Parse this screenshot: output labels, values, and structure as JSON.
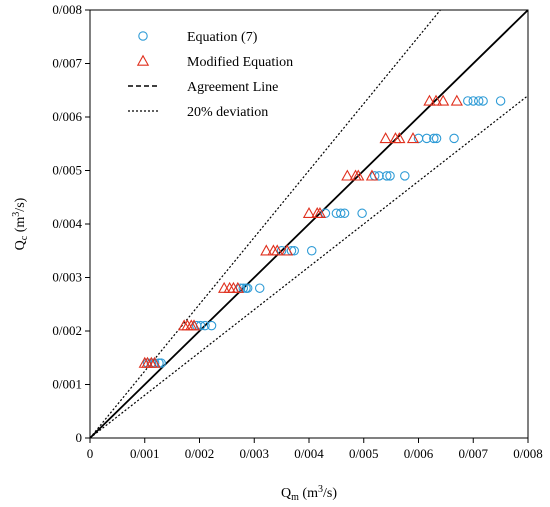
{
  "chart_data": {
    "type": "scatter",
    "xlim": [
      0,
      0.008
    ],
    "ylim": [
      0,
      0.008
    ],
    "xticks": [
      "0",
      "0/001",
      "0/002",
      "0/003",
      "0/004",
      "0/005",
      "0/006",
      "0/007",
      "0/008"
    ],
    "yticks": [
      "0",
      "0/001",
      "0/002",
      "0/003",
      "0/004",
      "0/005",
      "0/006",
      "0/007",
      "0/008"
    ],
    "xlabel_main": "Q",
    "xlabel_sub": "m",
    "xlabel_unit_pre": " (m",
    "xlabel_unit_sup": "3",
    "xlabel_unit_post": "/s)",
    "ylabel_main": "Q",
    "ylabel_sub": "c",
    "ylabel_unit_pre": " (m",
    "ylabel_unit_sup": "3",
    "ylabel_unit_post": "/s)",
    "grid": false,
    "legend_position": "top-left",
    "series": [
      {
        "name": "Equation (7)",
        "marker": "circle",
        "color": "#2E9BD6",
        "points": [
          [
            0.00105,
            0.0014
          ],
          [
            0.00112,
            0.0014
          ],
          [
            0.00118,
            0.0014
          ],
          [
            0.00126,
            0.0014
          ],
          [
            0.0013,
            0.0014
          ],
          [
            0.00195,
            0.0021
          ],
          [
            0.00202,
            0.0021
          ],
          [
            0.0021,
            0.0021
          ],
          [
            0.00222,
            0.0021
          ],
          [
            0.00275,
            0.0028
          ],
          [
            0.0028,
            0.0028
          ],
          [
            0.00285,
            0.0028
          ],
          [
            0.00288,
            0.0028
          ],
          [
            0.0031,
            0.0028
          ],
          [
            0.0035,
            0.0035
          ],
          [
            0.00368,
            0.0035
          ],
          [
            0.00373,
            0.0035
          ],
          [
            0.00405,
            0.0035
          ],
          [
            0.0043,
            0.0042
          ],
          [
            0.0045,
            0.0042
          ],
          [
            0.00458,
            0.0042
          ],
          [
            0.00465,
            0.0042
          ],
          [
            0.00497,
            0.0042
          ],
          [
            0.0052,
            0.0049
          ],
          [
            0.00528,
            0.0049
          ],
          [
            0.00542,
            0.0049
          ],
          [
            0.00548,
            0.0049
          ],
          [
            0.00575,
            0.0049
          ],
          [
            0.006,
            0.0056
          ],
          [
            0.00615,
            0.0056
          ],
          [
            0.00628,
            0.0056
          ],
          [
            0.00633,
            0.0056
          ],
          [
            0.00665,
            0.0056
          ],
          [
            0.0069,
            0.0063
          ],
          [
            0.007,
            0.0063
          ],
          [
            0.0071,
            0.0063
          ],
          [
            0.00718,
            0.0063
          ],
          [
            0.0075,
            0.0063
          ]
        ]
      },
      {
        "name": "Modified Equation",
        "marker": "triangle",
        "color": "#E0301E",
        "points": [
          [
            0.001,
            0.0014
          ],
          [
            0.00105,
            0.0014
          ],
          [
            0.00112,
            0.0014
          ],
          [
            0.00118,
            0.0014
          ],
          [
            0.00172,
            0.0021
          ],
          [
            0.00178,
            0.0021
          ],
          [
            0.00185,
            0.0021
          ],
          [
            0.0019,
            0.0021
          ],
          [
            0.00245,
            0.0028
          ],
          [
            0.00255,
            0.0028
          ],
          [
            0.00262,
            0.0028
          ],
          [
            0.0027,
            0.0028
          ],
          [
            0.00322,
            0.0035
          ],
          [
            0.00335,
            0.0035
          ],
          [
            0.00342,
            0.0035
          ],
          [
            0.0036,
            0.0035
          ],
          [
            0.004,
            0.0042
          ],
          [
            0.00415,
            0.0042
          ],
          [
            0.0042,
            0.0042
          ],
          [
            0.0047,
            0.0049
          ],
          [
            0.00485,
            0.0049
          ],
          [
            0.0049,
            0.0049
          ],
          [
            0.00515,
            0.0049
          ],
          [
            0.0054,
            0.0056
          ],
          [
            0.00558,
            0.0056
          ],
          [
            0.00565,
            0.0056
          ],
          [
            0.0059,
            0.0056
          ],
          [
            0.0062,
            0.0063
          ],
          [
            0.00632,
            0.0063
          ],
          [
            0.00645,
            0.0063
          ],
          [
            0.0067,
            0.0063
          ]
        ]
      }
    ],
    "lines": [
      {
        "name": "Agreement Line",
        "style": "solid",
        "legend_style": "dashed",
        "slope": 1.0
      },
      {
        "name": "20% deviation",
        "style": "dotted",
        "slope": 1.25
      },
      {
        "name": "20% deviation",
        "style": "dotted",
        "slope": 0.8
      }
    ],
    "legend": [
      {
        "label": "Equation (7)",
        "marker": "circle",
        "color": "#2E9BD6"
      },
      {
        "label": "Modified Equation",
        "marker": "triangle",
        "color": "#E0301E"
      },
      {
        "label": "Agreement Line",
        "marker": "dashed-line",
        "color": "#000000"
      },
      {
        "label": "20% deviation",
        "marker": "dotted-line",
        "color": "#000000"
      }
    ]
  }
}
